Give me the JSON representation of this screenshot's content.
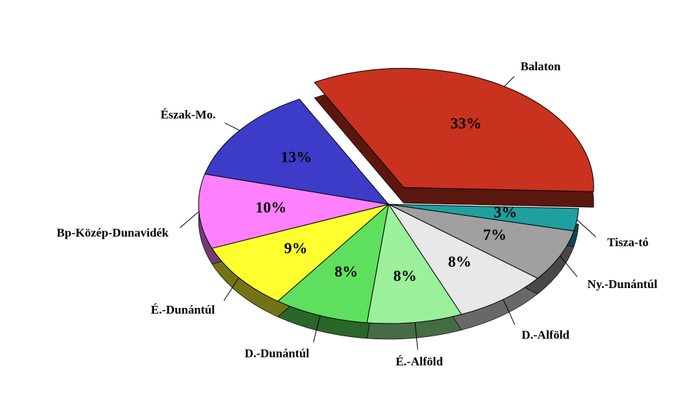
{
  "chart_data": {
    "type": "pie",
    "categories": [
      "Balaton",
      "Tisza-tó",
      "Ny.-Dunántúl",
      "D.-Alföld",
      "É.-Alföld",
      "D.-Dunántúl",
      "É.-Dunántúl",
      "Bp-Közép-Dunavidék",
      "Észak-Mo."
    ],
    "values": [
      33,
      3,
      7,
      8,
      8,
      8,
      9,
      10,
      13
    ],
    "value_labels": [
      "33%",
      "3%",
      "7%",
      "8%",
      "8%",
      "8%",
      "9%",
      "10%",
      "13%"
    ],
    "colors": [
      "#c8321e",
      "#1fa0a0",
      "#a0a0a0",
      "#e8e8e8",
      "#9cf09c",
      "#5ee05e",
      "#ffff30",
      "#ff80ff",
      "#3c3cc8"
    ]
  }
}
